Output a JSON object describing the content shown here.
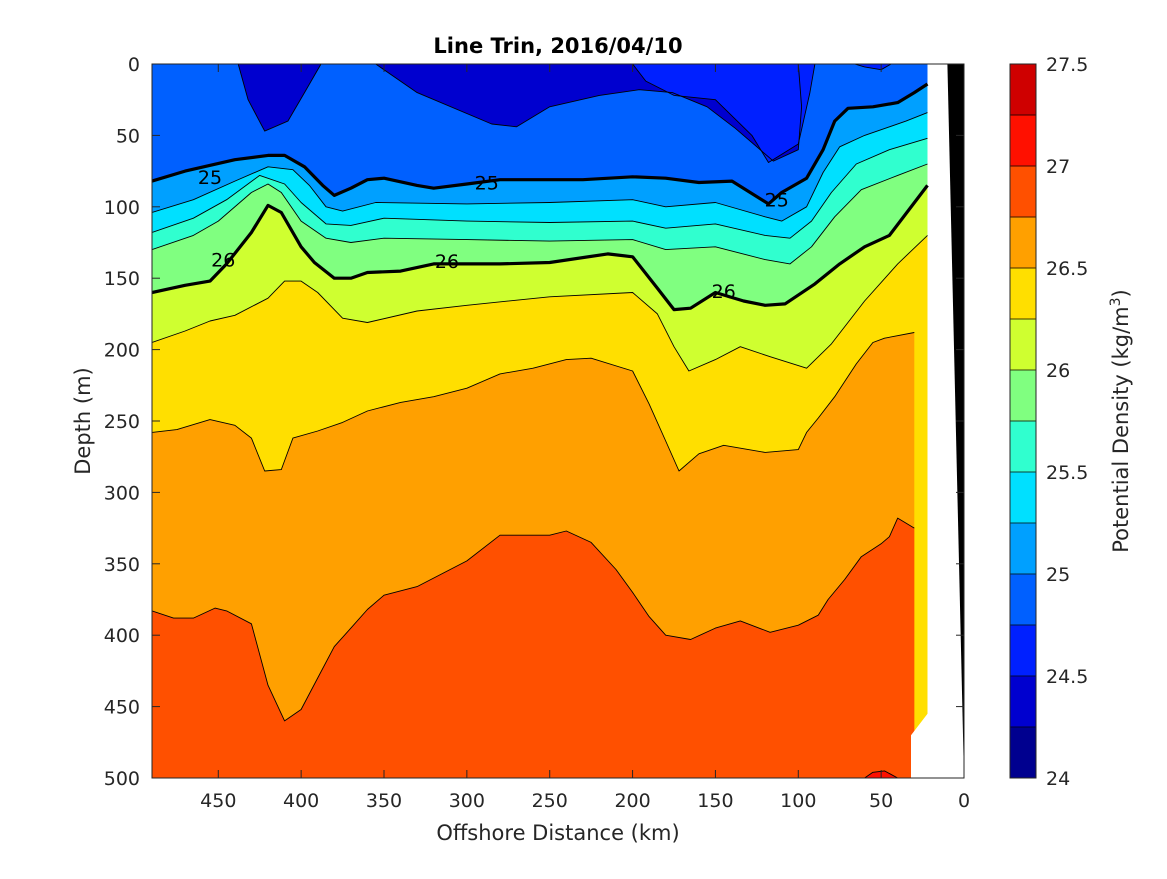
{
  "chart_data": {
    "type": "heatmap",
    "subtype": "filled-contour",
    "title": "Line Trin, 2016/04/10",
    "xlabel": "Offshore Distance (km)",
    "ylabel": "Depth (m)",
    "x_reversed": true,
    "y_reversed": true,
    "xlim": [
      0,
      490
    ],
    "ylim": [
      0,
      500
    ],
    "xticks": [
      "450",
      "400",
      "350",
      "300",
      "250",
      "200",
      "150",
      "100",
      "50",
      "0"
    ],
    "xtick_values": [
      450,
      400,
      350,
      300,
      250,
      200,
      150,
      100,
      50,
      0
    ],
    "yticks": [
      "0",
      "50",
      "100",
      "150",
      "200",
      "250",
      "300",
      "350",
      "400",
      "450",
      "500"
    ],
    "ytick_values": [
      0,
      50,
      100,
      150,
      200,
      250,
      300,
      350,
      400,
      450,
      500
    ],
    "colorbar": {
      "label": "Potential Density (kg/m",
      "label_superscript": "3",
      "label_close": ")",
      "range": [
        24,
        27.5
      ],
      "ticks": [
        "24",
        "24.5",
        "25",
        "25.5",
        "26",
        "26.5",
        "27",
        "27.5"
      ],
      "tick_values": [
        24,
        24.5,
        25,
        25.5,
        26,
        26.5,
        27,
        27.5
      ],
      "level_step": 0.25,
      "colors": [
        "#00008f",
        "#0000cf",
        "#0020ff",
        "#0060ff",
        "#00a0ff",
        "#00e0ff",
        "#30ffcf",
        "#80ff80",
        "#cfff30",
        "#ffdf00",
        "#ffa000",
        "#ff5000",
        "#ff1000",
        "#cf0000"
      ]
    },
    "contour_labels": [
      {
        "text": "25",
        "x": 455,
        "y": 79
      },
      {
        "text": "25",
        "x": 288,
        "y": 83
      },
      {
        "text": "25",
        "x": 113,
        "y": 95
      },
      {
        "text": "26",
        "x": 447,
        "y": 137
      },
      {
        "text": "26",
        "x": 312,
        "y": 138
      },
      {
        "text": "26",
        "x": 145,
        "y": 159
      }
    ],
    "isopycnals": [
      {
        "level": 24.5,
        "band_below": "#0060ff",
        "points": [
          [
            438,
            0
          ],
          [
            432,
            25
          ],
          [
            422,
            47
          ],
          [
            408,
            40
          ],
          [
            398,
            20
          ],
          [
            388,
            0
          ]
        ],
        "closed": true
      },
      {
        "level": 24.5,
        "band_below": "#0060ff",
        "points": [
          [
            355,
            0
          ],
          [
            330,
            20
          ],
          [
            285,
            42
          ],
          [
            270,
            44
          ],
          [
            250,
            30
          ],
          [
            220,
            22
          ],
          [
            196,
            18
          ],
          [
            176,
            20
          ],
          [
            155,
            30
          ],
          [
            138,
            45
          ],
          [
            115,
            68
          ],
          [
            100,
            60
          ],
          [
            98,
            30
          ],
          [
            100,
            0
          ]
        ],
        "closed": true
      },
      {
        "level": 24.75,
        "points": [
          [
            200,
            0
          ],
          [
            192,
            12
          ],
          [
            175,
            22
          ],
          [
            150,
            25
          ],
          [
            128,
            50
          ],
          [
            118,
            69
          ],
          [
            100,
            56
          ],
          [
            93,
            20
          ],
          [
            90,
            0
          ]
        ],
        "closed": true
      },
      {
        "level": 24.75,
        "points": [
          [
            66,
            0
          ],
          [
            60,
            2
          ],
          [
            50,
            4
          ],
          [
            44,
            0
          ]
        ],
        "closed": true
      },
      {
        "level": 25.0,
        "bold": true,
        "points": [
          [
            490,
            82
          ],
          [
            470,
            75
          ],
          [
            440,
            67
          ],
          [
            420,
            64
          ],
          [
            410,
            64
          ],
          [
            398,
            72
          ],
          [
            387,
            85
          ],
          [
            380,
            92
          ],
          [
            370,
            87
          ],
          [
            360,
            81
          ],
          [
            350,
            80
          ],
          [
            330,
            85
          ],
          [
            320,
            87
          ],
          [
            300,
            84
          ],
          [
            280,
            81
          ],
          [
            230,
            81
          ],
          [
            200,
            79
          ],
          [
            180,
            80
          ],
          [
            160,
            83
          ],
          [
            140,
            82
          ],
          [
            118,
            98
          ],
          [
            110,
            90
          ],
          [
            95,
            80
          ],
          [
            85,
            60
          ],
          [
            78,
            40
          ],
          [
            70,
            31
          ],
          [
            55,
            30
          ],
          [
            40,
            27
          ],
          [
            30,
            20
          ],
          [
            22,
            14
          ]
        ]
      },
      {
        "level": 25.25,
        "points": [
          [
            490,
            104
          ],
          [
            465,
            95
          ],
          [
            440,
            82
          ],
          [
            420,
            72
          ],
          [
            405,
            74
          ],
          [
            395,
            85
          ],
          [
            385,
            100
          ],
          [
            375,
            103
          ],
          [
            355,
            97
          ],
          [
            300,
            98
          ],
          [
            250,
            97
          ],
          [
            200,
            95
          ],
          [
            180,
            100
          ],
          [
            150,
            97
          ],
          [
            120,
            107
          ],
          [
            110,
            110
          ],
          [
            95,
            100
          ],
          [
            85,
            76
          ],
          [
            75,
            58
          ],
          [
            60,
            50
          ],
          [
            35,
            40
          ],
          [
            22,
            34
          ]
        ]
      },
      {
        "level": 25.5,
        "points": [
          [
            490,
            118
          ],
          [
            465,
            108
          ],
          [
            445,
            95
          ],
          [
            425,
            78
          ],
          [
            410,
            84
          ],
          [
            400,
            97
          ],
          [
            385,
            112
          ],
          [
            370,
            113
          ],
          [
            350,
            108
          ],
          [
            300,
            110
          ],
          [
            250,
            111
          ],
          [
            200,
            110
          ],
          [
            180,
            115
          ],
          [
            150,
            112
          ],
          [
            120,
            120
          ],
          [
            105,
            122
          ],
          [
            92,
            110
          ],
          [
            80,
            90
          ],
          [
            65,
            70
          ],
          [
            45,
            60
          ],
          [
            22,
            52
          ]
        ]
      },
      {
        "level": 25.75,
        "points": [
          [
            490,
            130
          ],
          [
            465,
            120
          ],
          [
            450,
            110
          ],
          [
            430,
            90
          ],
          [
            420,
            84
          ],
          [
            412,
            90
          ],
          [
            400,
            110
          ],
          [
            385,
            122
          ],
          [
            370,
            125
          ],
          [
            350,
            122
          ],
          [
            300,
            123
          ],
          [
            250,
            124
          ],
          [
            200,
            123
          ],
          [
            180,
            130
          ],
          [
            150,
            128
          ],
          [
            120,
            137
          ],
          [
            105,
            140
          ],
          [
            92,
            128
          ],
          [
            78,
            107
          ],
          [
            62,
            88
          ],
          [
            40,
            78
          ],
          [
            22,
            70
          ]
        ]
      },
      {
        "level": 26.0,
        "bold": true,
        "points": [
          [
            490,
            160
          ],
          [
            470,
            155
          ],
          [
            455,
            152
          ],
          [
            445,
            140
          ],
          [
            430,
            118
          ],
          [
            420,
            99
          ],
          [
            412,
            104
          ],
          [
            400,
            128
          ],
          [
            392,
            139
          ],
          [
            380,
            150
          ],
          [
            370,
            150
          ],
          [
            360,
            146
          ],
          [
            340,
            145
          ],
          [
            320,
            140
          ],
          [
            280,
            140
          ],
          [
            250,
            139
          ],
          [
            215,
            133
          ],
          [
            200,
            135
          ],
          [
            185,
            157
          ],
          [
            175,
            172
          ],
          [
            165,
            171
          ],
          [
            150,
            160
          ],
          [
            133,
            166
          ],
          [
            120,
            169
          ],
          [
            108,
            168
          ],
          [
            90,
            154
          ],
          [
            75,
            140
          ],
          [
            60,
            128
          ],
          [
            45,
            120
          ],
          [
            22,
            85
          ]
        ]
      },
      {
        "level": 26.25,
        "points": [
          [
            490,
            195
          ],
          [
            470,
            187
          ],
          [
            455,
            180
          ],
          [
            440,
            176
          ],
          [
            420,
            164
          ],
          [
            410,
            152
          ],
          [
            400,
            152
          ],
          [
            390,
            160
          ],
          [
            375,
            178
          ],
          [
            360,
            181
          ],
          [
            330,
            173
          ],
          [
            300,
            169
          ],
          [
            250,
            163
          ],
          [
            200,
            160
          ],
          [
            185,
            175
          ],
          [
            175,
            198
          ],
          [
            166,
            215
          ],
          [
            150,
            207
          ],
          [
            135,
            198
          ],
          [
            117,
            205
          ],
          [
            95,
            213
          ],
          [
            80,
            196
          ],
          [
            60,
            166
          ],
          [
            40,
            140
          ],
          [
            22,
            120
          ]
        ]
      },
      {
        "level": 26.5,
        "points": [
          [
            490,
            258
          ],
          [
            475,
            256
          ],
          [
            455,
            249
          ],
          [
            440,
            253
          ],
          [
            430,
            262
          ],
          [
            422,
            285
          ],
          [
            412,
            284
          ],
          [
            405,
            262
          ],
          [
            390,
            257
          ],
          [
            375,
            251
          ],
          [
            360,
            243
          ],
          [
            340,
            237
          ],
          [
            320,
            233
          ],
          [
            300,
            227
          ],
          [
            280,
            217
          ],
          [
            260,
            213
          ],
          [
            240,
            207
          ],
          [
            225,
            206
          ],
          [
            200,
            215
          ],
          [
            190,
            238
          ],
          [
            180,
            264
          ],
          [
            172,
            285
          ],
          [
            160,
            273
          ],
          [
            145,
            267
          ],
          [
            120,
            272
          ],
          [
            100,
            270
          ],
          [
            95,
            258
          ],
          [
            88,
            248
          ],
          [
            78,
            233
          ],
          [
            65,
            210
          ],
          [
            55,
            195
          ],
          [
            48,
            192
          ],
          [
            30,
            188
          ]
        ]
      },
      {
        "level": 26.75,
        "points": [
          [
            490,
            383
          ],
          [
            477,
            388
          ],
          [
            465,
            388
          ],
          [
            452,
            381
          ],
          [
            445,
            383
          ],
          [
            430,
            392
          ],
          [
            420,
            435
          ],
          [
            410,
            460
          ],
          [
            400,
            452
          ],
          [
            390,
            430
          ],
          [
            380,
            408
          ],
          [
            370,
            395
          ],
          [
            360,
            382
          ],
          [
            350,
            372
          ],
          [
            330,
            366
          ],
          [
            300,
            348
          ],
          [
            280,
            330
          ],
          [
            250,
            330
          ],
          [
            240,
            327
          ],
          [
            225,
            335
          ],
          [
            210,
            354
          ],
          [
            200,
            370
          ],
          [
            190,
            387
          ],
          [
            180,
            400
          ],
          [
            165,
            403
          ],
          [
            150,
            395
          ],
          [
            135,
            390
          ],
          [
            117,
            398
          ],
          [
            100,
            393
          ],
          [
            88,
            386
          ],
          [
            82,
            375
          ],
          [
            72,
            361
          ],
          [
            62,
            345
          ],
          [
            50,
            336
          ],
          [
            45,
            331
          ],
          [
            40,
            318
          ],
          [
            30,
            325
          ]
        ]
      },
      {
        "level": 27.0,
        "points": [
          [
            60,
            500
          ],
          [
            55,
            496
          ],
          [
            48,
            495
          ],
          [
            40,
            500
          ]
        ],
        "closed": true
      }
    ],
    "bathymetry_mask": [
      [
        0,
        0
      ],
      [
        22,
        0
      ],
      [
        22,
        455
      ],
      [
        32,
        470
      ],
      [
        32,
        500
      ],
      [
        0,
        500
      ]
    ],
    "seafloor": [
      [
        0,
        0
      ],
      [
        10,
        0
      ],
      [
        0,
        500
      ]
    ]
  }
}
